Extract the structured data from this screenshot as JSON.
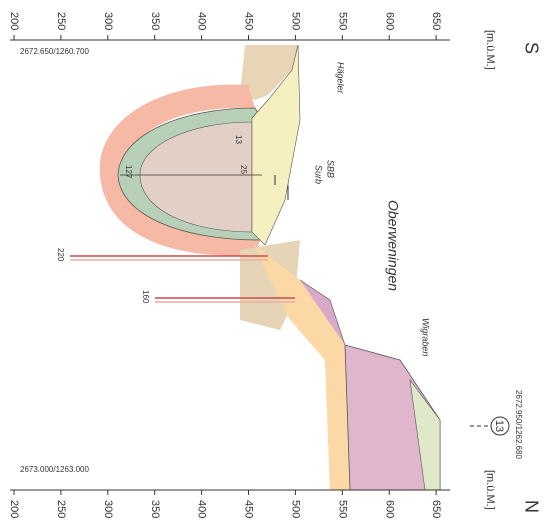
{
  "axis_top": {
    "unit": "[m.ü.M.]",
    "labels": [
      "200",
      "250",
      "300",
      "350",
      "400",
      "450",
      "500",
      "550",
      "600",
      "650"
    ],
    "direction": "S",
    "coordinate": "2672.650/1260.700"
  },
  "axis_bottom": {
    "unit": "[m.ü.M.]",
    "labels": [
      "200",
      "250",
      "300",
      "350",
      "400",
      "450",
      "500",
      "550",
      "600",
      "650"
    ],
    "direction": "N",
    "coordinate": "2673.000/1263.000"
  },
  "profile_marker": {
    "number": "13",
    "coordinate": "2672.950/1262.680"
  },
  "places": [
    "Hägeler",
    "SBB",
    "Surb",
    "Oberweningen",
    "Wigraben"
  ],
  "boreholes": [
    "220",
    "160"
  ],
  "depth_labels": [
    "13",
    "25",
    "127"
  ]
}
